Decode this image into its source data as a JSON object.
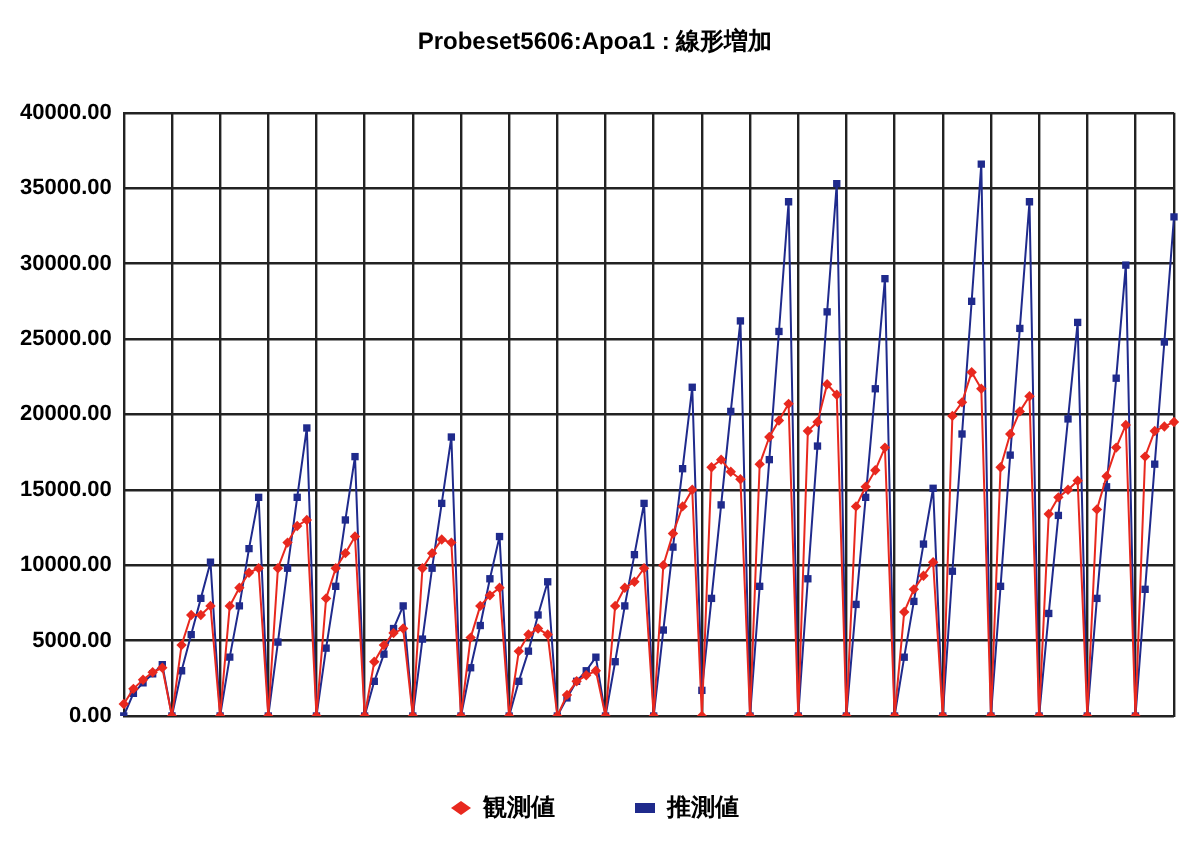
{
  "chart_data": {
    "type": "line",
    "title": "Probeset5606:Apoa1 : 線形増加",
    "categories": [
      null,
      null,
      null,
      null,
      null,
      null,
      null,
      null,
      null,
      null,
      null,
      null,
      null,
      null,
      null,
      null,
      null,
      null,
      null,
      null,
      null,
      null,
      null,
      null,
      null,
      null,
      null,
      null,
      null,
      null,
      null,
      null,
      null,
      null,
      null,
      null,
      null,
      null,
      null,
      null,
      null,
      null,
      null,
      null,
      null,
      null,
      null,
      null,
      null,
      null,
      null,
      null,
      null,
      null,
      null,
      null,
      null,
      null,
      null,
      null,
      null,
      null,
      null,
      null,
      null,
      null,
      null,
      null,
      null,
      null,
      null,
      null,
      null,
      null,
      null,
      null,
      null,
      null,
      null,
      null,
      null,
      null,
      null,
      null,
      null,
      null,
      null,
      null,
      null,
      null,
      null,
      null,
      null,
      null,
      null,
      null,
      null,
      null,
      null,
      null,
      null,
      null,
      null,
      null,
      null,
      null,
      null,
      null,
      null,
      null
    ],
    "series": [
      {
        "name": "観測値",
        "color": "#e8281e",
        "marker": "diamond",
        "values": [
          800,
          1800,
          2400,
          2900,
          3200,
          0,
          4700,
          6700,
          6700,
          7300,
          0,
          7300,
          8500,
          9500,
          9800,
          0,
          9800,
          11500,
          12600,
          13000,
          0,
          7800,
          9800,
          10800,
          11900,
          0,
          3600,
          4700,
          5500,
          5800,
          0,
          9800,
          10800,
          11700,
          11500,
          0,
          5200,
          7300,
          8000,
          8500,
          0,
          4300,
          5400,
          5800,
          5400,
          0,
          1400,
          2300,
          2700,
          3000,
          0,
          7300,
          8500,
          8900,
          9800,
          0,
          10000,
          12100,
          13900,
          15000,
          0,
          16500,
          17000,
          16200,
          15700,
          0,
          16700,
          18500,
          19600,
          20700,
          0,
          18900,
          19500,
          22000,
          21300,
          0,
          13900,
          15200,
          16300,
          17800,
          0,
          6900,
          8400,
          9300,
          10200,
          0,
          19900,
          20800,
          22800,
          21700,
          0,
          16500,
          18700,
          20200,
          21200,
          0,
          13400,
          14500,
          15000,
          15600,
          0,
          13700,
          15900,
          17800,
          19300,
          0,
          17200,
          18900,
          19200,
          19500
        ]
      },
      {
        "name": "推測値",
        "color": "#1f2a8c",
        "marker": "square",
        "values": [
          0,
          1500,
          2200,
          2800,
          3400,
          0,
          3000,
          5400,
          7800,
          10200,
          0,
          3900,
          7300,
          11100,
          14500,
          0,
          4900,
          9800,
          14500,
          19100,
          0,
          4500,
          8600,
          13000,
          17200,
          0,
          2300,
          4100,
          5800,
          7300,
          0,
          5100,
          9800,
          14100,
          18500,
          0,
          3200,
          6000,
          9100,
          11900,
          0,
          2300,
          4300,
          6700,
          8900,
          0,
          1200,
          2300,
          3000,
          3900,
          0,
          3600,
          7300,
          10700,
          14100,
          0,
          5700,
          11200,
          16400,
          21800,
          1700,
          7800,
          14000,
          20200,
          26200,
          0,
          8600,
          17000,
          25500,
          34100,
          0,
          9100,
          17900,
          26800,
          35300,
          0,
          7400,
          14500,
          21700,
          29000,
          0,
          3900,
          7600,
          11400,
          15100,
          0,
          9600,
          18700,
          27500,
          36600,
          0,
          8600,
          17300,
          25700,
          34100,
          0,
          6800,
          13300,
          19700,
          26100,
          0,
          7800,
          15200,
          22400,
          29900,
          0,
          8400,
          16700,
          24800,
          33100
        ]
      }
    ],
    "ylim": [
      0,
      40000
    ],
    "yticks": [
      {
        "value": 0,
        "label": "0.00"
      },
      {
        "value": 5000,
        "label": "5000.00"
      },
      {
        "value": 10000,
        "label": "10000.00"
      },
      {
        "value": 15000,
        "label": "15000.00"
      },
      {
        "value": 20000,
        "label": "20000.00"
      },
      {
        "value": 25000,
        "label": "25000.00"
      },
      {
        "value": 30000,
        "label": "30000.00"
      },
      {
        "value": 35000,
        "label": "35000.00"
      },
      {
        "value": 40000,
        "label": "40000.00"
      }
    ],
    "tick_labels": "y",
    "grid": true,
    "legend": "bottom",
    "line_style": "solid"
  }
}
